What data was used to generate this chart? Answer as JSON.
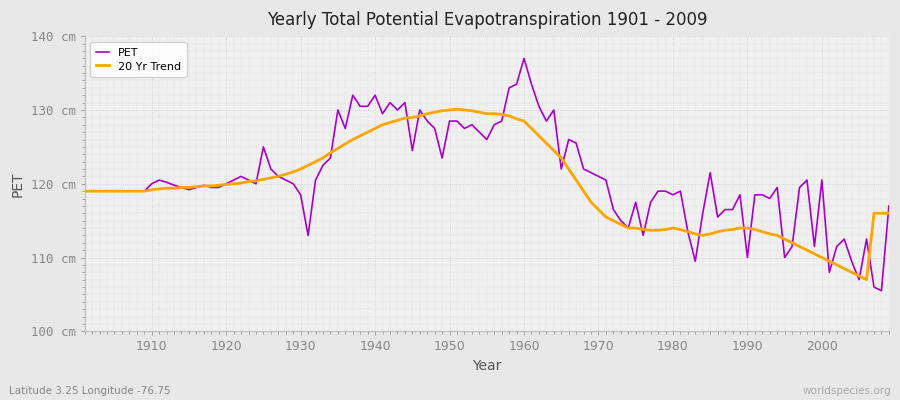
{
  "title": "Yearly Total Potential Evapotranspiration 1901 - 2009",
  "xlabel": "Year",
  "ylabel": "PET",
  "bottom_left_label": "Latitude 3.25 Longitude -76.75",
  "bottom_right_label": "worldspecies.org",
  "ylim": [
    100,
    140
  ],
  "xlim": [
    1901,
    2009
  ],
  "yticks": [
    100,
    110,
    120,
    130,
    140
  ],
  "ytick_labels": [
    "100 cm",
    "110 cm",
    "120 cm",
    "130 cm",
    "140 cm"
  ],
  "xticks": [
    1910,
    1920,
    1930,
    1940,
    1950,
    1960,
    1970,
    1980,
    1990,
    2000
  ],
  "pet_color": "#AA00CC",
  "trend_color": "#FFA500",
  "fig_bg_color": "#E8E8E8",
  "plot_bg_color": "#F0F0F0",
  "legend_labels": [
    "PET",
    "20 Yr Trend"
  ],
  "years": [
    1901,
    1902,
    1903,
    1904,
    1905,
    1906,
    1907,
    1908,
    1909,
    1910,
    1911,
    1912,
    1913,
    1914,
    1915,
    1916,
    1917,
    1918,
    1919,
    1920,
    1921,
    1922,
    1923,
    1924,
    1925,
    1926,
    1927,
    1928,
    1929,
    1930,
    1931,
    1932,
    1933,
    1934,
    1935,
    1936,
    1937,
    1938,
    1939,
    1940,
    1941,
    1942,
    1943,
    1944,
    1945,
    1946,
    1947,
    1948,
    1949,
    1950,
    1951,
    1952,
    1953,
    1954,
    1955,
    1956,
    1957,
    1958,
    1959,
    1960,
    1961,
    1962,
    1963,
    1964,
    1965,
    1966,
    1967,
    1968,
    1969,
    1970,
    1971,
    1972,
    1973,
    1974,
    1975,
    1976,
    1977,
    1978,
    1979,
    1980,
    1981,
    1982,
    1983,
    1984,
    1985,
    1986,
    1987,
    1988,
    1989,
    1990,
    1991,
    1992,
    1993,
    1994,
    1995,
    1996,
    1997,
    1998,
    1999,
    2000,
    2001,
    2002,
    2003,
    2004,
    2005,
    2006,
    2007,
    2008,
    2009
  ],
  "pet_values": [
    119.0,
    119.0,
    119.0,
    119.0,
    119.0,
    119.0,
    119.0,
    119.0,
    119.0,
    120.0,
    120.5,
    120.2,
    119.8,
    119.5,
    119.2,
    119.5,
    119.8,
    119.5,
    119.5,
    120.0,
    120.5,
    121.0,
    120.5,
    120.0,
    125.0,
    122.0,
    121.0,
    120.5,
    120.0,
    118.5,
    113.0,
    120.5,
    122.5,
    123.5,
    130.0,
    127.5,
    132.0,
    130.5,
    130.5,
    132.0,
    129.5,
    131.0,
    130.0,
    131.0,
    124.5,
    130.0,
    128.5,
    127.5,
    123.5,
    128.5,
    128.5,
    127.5,
    128.0,
    127.0,
    126.0,
    128.0,
    128.5,
    133.0,
    133.5,
    137.0,
    133.5,
    130.5,
    128.5,
    130.0,
    122.0,
    126.0,
    125.5,
    122.0,
    121.5,
    121.0,
    120.5,
    116.5,
    115.0,
    114.0,
    117.5,
    113.0,
    117.5,
    119.0,
    119.0,
    118.5,
    119.0,
    113.5,
    109.5,
    116.0,
    121.5,
    115.5,
    116.5,
    116.5,
    118.5,
    110.0,
    118.5,
    118.5,
    118.0,
    119.5,
    110.0,
    111.5,
    119.5,
    120.5,
    111.5,
    120.5,
    108.0,
    111.5,
    112.5,
    109.5,
    107.0,
    112.5,
    106.0,
    105.5,
    117.0
  ],
  "trend_values": [
    119.0,
    119.0,
    119.0,
    119.0,
    119.0,
    119.0,
    119.0,
    119.0,
    119.0,
    119.2,
    119.3,
    119.4,
    119.4,
    119.5,
    119.5,
    119.6,
    119.7,
    119.7,
    119.8,
    119.9,
    120.0,
    120.1,
    120.3,
    120.4,
    120.6,
    120.8,
    121.0,
    121.3,
    121.6,
    122.0,
    122.5,
    123.0,
    123.5,
    124.2,
    124.8,
    125.4,
    126.0,
    126.5,
    127.0,
    127.5,
    128.0,
    128.3,
    128.6,
    128.9,
    129.0,
    129.2,
    129.5,
    129.7,
    129.9,
    130.0,
    130.1,
    130.0,
    129.9,
    129.7,
    129.5,
    129.5,
    129.4,
    129.2,
    128.8,
    128.5,
    127.5,
    126.5,
    125.5,
    124.5,
    123.5,
    122.0,
    120.5,
    119.0,
    117.5,
    116.5,
    115.5,
    115.0,
    114.5,
    114.0,
    114.0,
    113.8,
    113.7,
    113.7,
    113.8,
    114.0,
    113.8,
    113.5,
    113.2,
    113.0,
    113.2,
    113.5,
    113.7,
    113.8,
    114.0,
    114.0,
    113.8,
    113.5,
    113.2,
    113.0,
    112.5,
    112.0,
    111.5,
    111.0,
    110.5,
    110.0,
    109.5,
    109.0,
    108.5,
    108.0,
    107.5,
    107.0,
    116.0,
    116.0,
    116.0
  ]
}
